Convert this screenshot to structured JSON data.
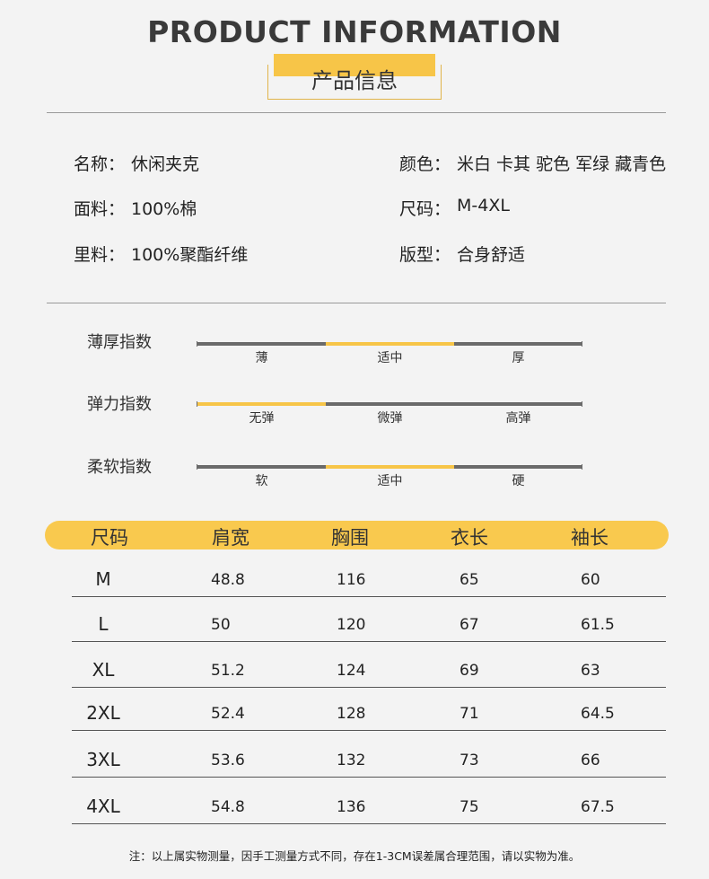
{
  "header": {
    "title": "PRODUCT INFORMATION",
    "subtitle": "产品信息"
  },
  "info": {
    "items": [
      {
        "label": "名称：",
        "value": "休闲夹克"
      },
      {
        "label": "颜色：",
        "value": "米白 卡其  驼色  军绿  藏青色"
      },
      {
        "label": "面料：",
        "value": "100%棉"
      },
      {
        "label": "尺码：",
        "value": "M-4XL"
      },
      {
        "label": "里料：",
        "value": "100%聚酯纤维"
      },
      {
        "label": "版型：",
        "value": "合身舒适"
      }
    ]
  },
  "indices": [
    {
      "name": "薄厚指数",
      "levels": [
        "薄",
        "适中",
        "厚"
      ],
      "selected": 1
    },
    {
      "name": "弹力指数",
      "levels": [
        "无弹",
        "微弹",
        "高弹"
      ],
      "selected": 0
    },
    {
      "name": "柔软指数",
      "levels": [
        "软",
        "适中",
        "硬"
      ],
      "selected": 1
    }
  ],
  "table": {
    "header": [
      "尺码",
      "肩宽",
      "胸围",
      "衣长",
      "袖长"
    ],
    "rows": [
      [
        "M",
        48.8,
        116,
        65,
        60
      ],
      [
        "L",
        50,
        120,
        67,
        61.5
      ],
      [
        "XL",
        51.2,
        124,
        69,
        63
      ],
      [
        "2XL",
        52.4,
        128,
        71,
        64.5
      ],
      [
        "3XL",
        53.6,
        132,
        73,
        66
      ],
      [
        "4XL",
        54.8,
        136,
        75,
        67.5
      ]
    ]
  },
  "note": "注：以上属实物测量，因手工测量方式不同，存在1-3CM误差属合理范围，请以实物为准。"
}
